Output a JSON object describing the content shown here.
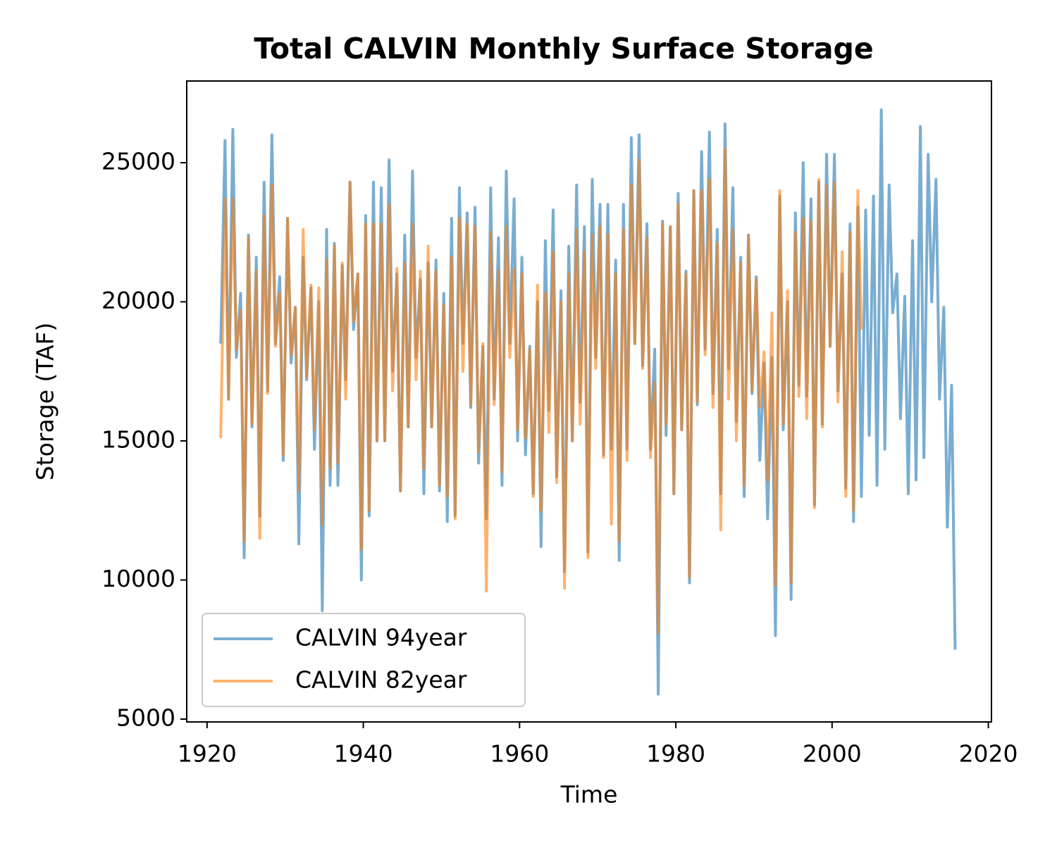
{
  "chart_data": {
    "type": "line",
    "title": "Total CALVIN Monthly Surface Storage",
    "x_label": "Time",
    "y_label": "Storage (TAF)",
    "xlim": [
      1917.4,
      2020.4
    ],
    "ylim": [
      4899,
      27937
    ],
    "xticks": [
      1920,
      1940,
      1960,
      1980,
      2000,
      2020
    ],
    "yticks": [
      5000,
      10000,
      15000,
      20000,
      25000
    ],
    "legend": "lower left",
    "series": [
      {
        "name": "CALVIN 94year",
        "color": "#1f77b4",
        "opacity": 0.6,
        "x": [
          1921.75,
          1922.3,
          1922.75,
          1923.3,
          1923.75,
          1924.3,
          1924.75,
          1925.3,
          1925.75,
          1926.3,
          1926.75,
          1927.3,
          1927.75,
          1928.3,
          1928.75,
          1929.3,
          1929.75,
          1930.3,
          1930.75,
          1931.3,
          1931.75,
          1932.3,
          1932.75,
          1933.3,
          1933.75,
          1934.3,
          1934.75,
          1935.3,
          1935.75,
          1936.3,
          1936.75,
          1937.3,
          1937.75,
          1938.3,
          1938.75,
          1939.3,
          1939.75,
          1940.3,
          1940.75,
          1941.3,
          1941.75,
          1942.3,
          1942.75,
          1943.3,
          1943.75,
          1944.3,
          1944.75,
          1945.3,
          1945.75,
          1946.3,
          1946.75,
          1947.3,
          1947.75,
          1948.3,
          1948.75,
          1949.3,
          1949.75,
          1950.3,
          1950.75,
          1951.3,
          1951.75,
          1952.3,
          1952.75,
          1953.3,
          1953.75,
          1954.3,
          1954.75,
          1955.3,
          1955.75,
          1956.3,
          1956.75,
          1957.3,
          1957.75,
          1958.3,
          1958.75,
          1959.3,
          1959.75,
          1960.3,
          1960.75,
          1961.3,
          1961.75,
          1962.3,
          1962.75,
          1963.3,
          1963.75,
          1964.3,
          1964.75,
          1965.3,
          1965.75,
          1966.3,
          1966.75,
          1967.3,
          1967.75,
          1968.3,
          1968.75,
          1969.3,
          1969.75,
          1970.3,
          1970.75,
          1971.3,
          1971.75,
          1972.3,
          1972.75,
          1973.3,
          1973.75,
          1974.3,
          1974.75,
          1975.3,
          1975.75,
          1976.3,
          1976.75,
          1977.3,
          1977.75,
          1978.3,
          1978.75,
          1979.3,
          1979.75,
          1980.3,
          1980.75,
          1981.3,
          1981.75,
          1982.3,
          1982.75,
          1983.3,
          1983.75,
          1984.3,
          1984.75,
          1985.3,
          1985.75,
          1986.3,
          1986.75,
          1987.3,
          1987.75,
          1988.3,
          1988.75,
          1989.3,
          1989.75,
          1990.3,
          1990.75,
          1991.3,
          1991.75,
          1992.3,
          1992.75,
          1993.3,
          1993.75,
          1994.3,
          1994.75,
          1995.3,
          1995.75,
          1996.3,
          1996.75,
          1997.3,
          1997.75,
          1998.3,
          1998.75,
          1999.3,
          1999.75,
          2000.3,
          2000.75,
          2001.3,
          2001.75,
          2002.3,
          2002.75,
          2003.3,
          2003.75,
          2004.3,
          2004.75,
          2005.3,
          2005.75,
          2006.3,
          2006.75,
          2007.3,
          2007.75,
          2008.3,
          2008.75,
          2009.3,
          2009.75,
          2010.3,
          2010.75,
          2011.3,
          2011.75,
          2012.3,
          2012.75,
          2013.3,
          2013.75,
          2014.3,
          2014.75,
          2015.3,
          2015.75
        ],
        "values": [
          18500,
          25800,
          16500,
          26200,
          18000,
          20300,
          10800,
          22400,
          15500,
          21600,
          12300,
          24300,
          16800,
          26000,
          18500,
          20900,
          14300,
          23000,
          17800,
          19800,
          11300,
          21600,
          17200,
          20500,
          14700,
          20000,
          8900,
          22600,
          13400,
          22100,
          13400,
          21300,
          17200,
          24300,
          19000,
          21000,
          10000,
          23100,
          12300,
          24300,
          15000,
          24100,
          15000,
          25100,
          17500,
          21000,
          13200,
          22400,
          15500,
          24700,
          18000,
          20800,
          13100,
          21400,
          15500,
          21500,
          13200,
          20300,
          12100,
          23000,
          12300,
          24100,
          18500,
          23200,
          16200,
          23400,
          14200,
          18400,
          12200,
          24100,
          16500,
          22300,
          13400,
          24700,
          18500,
          23700,
          15000,
          21600,
          14500,
          18400,
          13100,
          20000,
          11200,
          22200,
          16100,
          23300,
          13700,
          20400,
          10300,
          22000,
          15000,
          24200,
          16400,
          22700,
          11000,
          24400,
          18000,
          23500,
          14500,
          23500,
          14700,
          21500,
          10700,
          23500,
          14700,
          25900,
          18500,
          26000,
          17700,
          22800,
          14700,
          18300,
          5900,
          22900,
          15200,
          22700,
          13100,
          23900,
          15400,
          21100,
          9900,
          24000,
          16300,
          25400,
          18300,
          26100,
          16700,
          22600,
          13100,
          26400,
          17600,
          24100,
          15700,
          21600,
          13000,
          22400,
          16700,
          20900,
          14300,
          17800,
          12200,
          18000,
          8000,
          23800,
          15400,
          20000,
          9300,
          23200,
          17000,
          25000,
          16600,
          23700,
          12700,
          24300,
          15600,
          25300,
          18400,
          25300,
          16800,
          21000,
          13300,
          22800,
          12100,
          23400,
          13000,
          23300,
          15200,
          23800,
          13400,
          26900,
          14700,
          24200,
          19600,
          21000,
          15800,
          20200,
          13100,
          22200,
          13600,
          26300,
          14400,
          25300,
          20000,
          24400,
          16500,
          19800,
          11900,
          17000,
          7500
        ]
      },
      {
        "name": "CALVIN 82year",
        "color": "#ff7f0e",
        "opacity": 0.6,
        "x": [
          1921.75,
          1922.3,
          1922.75,
          1923.3,
          1923.75,
          1924.3,
          1924.75,
          1925.3,
          1925.75,
          1926.3,
          1926.75,
          1927.3,
          1927.75,
          1928.3,
          1928.75,
          1929.3,
          1929.75,
          1930.3,
          1930.75,
          1931.3,
          1931.75,
          1932.3,
          1932.75,
          1933.3,
          1933.75,
          1934.3,
          1934.75,
          1935.3,
          1935.75,
          1936.3,
          1936.75,
          1937.3,
          1937.75,
          1938.3,
          1938.75,
          1939.3,
          1939.75,
          1940.3,
          1940.75,
          1941.3,
          1941.75,
          1942.3,
          1942.75,
          1943.3,
          1943.75,
          1944.3,
          1944.75,
          1945.3,
          1945.75,
          1946.3,
          1946.75,
          1947.3,
          1947.75,
          1948.3,
          1948.75,
          1949.3,
          1949.75,
          1950.3,
          1950.75,
          1951.3,
          1951.75,
          1952.3,
          1952.75,
          1953.3,
          1953.75,
          1954.3,
          1954.75,
          1955.3,
          1955.75,
          1956.3,
          1956.75,
          1957.3,
          1957.75,
          1958.3,
          1958.75,
          1959.3,
          1959.75,
          1960.3,
          1960.75,
          1961.3,
          1961.75,
          1962.3,
          1962.75,
          1963.3,
          1963.75,
          1964.3,
          1964.75,
          1965.3,
          1965.75,
          1966.3,
          1966.75,
          1967.3,
          1967.75,
          1968.3,
          1968.75,
          1969.3,
          1969.75,
          1970.3,
          1970.75,
          1971.3,
          1971.75,
          1972.3,
          1972.75,
          1973.3,
          1973.75,
          1974.3,
          1974.75,
          1975.3,
          1975.75,
          1976.3,
          1976.75,
          1977.3,
          1977.75,
          1978.3,
          1978.75,
          1979.3,
          1979.75,
          1980.3,
          1980.75,
          1981.3,
          1981.75,
          1982.3,
          1982.75,
          1983.3,
          1983.75,
          1984.3,
          1984.75,
          1985.3,
          1985.75,
          1986.3,
          1986.75,
          1987.3,
          1987.75,
          1988.3,
          1988.75,
          1989.3,
          1989.75,
          1990.3,
          1990.75,
          1991.3,
          1991.75,
          1992.3,
          1992.75,
          1993.3,
          1993.75,
          1994.3,
          1994.75,
          1995.3,
          1995.75,
          1996.3,
          1996.75,
          1997.3,
          1997.75,
          1998.3,
          1998.75,
          1999.3,
          1999.75,
          2000.3,
          2000.75,
          2001.3,
          2001.75,
          2002.3,
          2002.75,
          2003.3,
          2003.75
        ],
        "values": [
          15100,
          23700,
          16500,
          23700,
          18300,
          19700,
          11400,
          22300,
          15600,
          21100,
          11500,
          23100,
          16700,
          24200,
          18400,
          20300,
          14500,
          23000,
          18100,
          19800,
          13200,
          22600,
          17300,
          20600,
          15400,
          20500,
          12000,
          21500,
          14000,
          22000,
          14200,
          21400,
          16500,
          24300,
          19300,
          21000,
          11100,
          22800,
          12500,
          22800,
          15000,
          22800,
          15000,
          23500,
          16800,
          21200,
          13200,
          21400,
          15500,
          22800,
          17200,
          21100,
          14000,
          22000,
          15500,
          21100,
          13400,
          19900,
          13000,
          21600,
          12200,
          23000,
          17500,
          22800,
          16300,
          22700,
          14600,
          18500,
          9600,
          22500,
          16300,
          21100,
          13900,
          22700,
          18000,
          21200,
          15400,
          21000,
          15100,
          18300,
          13000,
          20600,
          12500,
          20300,
          15300,
          21800,
          13500,
          20000,
          9700,
          21000,
          15000,
          22600,
          15600,
          21800,
          10800,
          22400,
          17600,
          22700,
          14400,
          22400,
          12000,
          21000,
          11400,
          22600,
          14300,
          24200,
          18500,
          25100,
          17600,
          22300,
          14400,
          17100,
          8100,
          22800,
          15600,
          22700,
          13100,
          23500,
          15400,
          21000,
          10100,
          24000,
          16400,
          24000,
          18100,
          24400,
          16200,
          22100,
          11800,
          25500,
          16500,
          22600,
          15000,
          21400,
          13400,
          22400,
          16800,
          20800,
          16200,
          18200,
          13600,
          19600,
          9800,
          24000,
          15600,
          20400,
          9900,
          22500,
          16600,
          23000,
          15800,
          22900,
          12600,
          24400,
          15500,
          24200,
          18400,
          24300,
          16400,
          21800,
          13000,
          22500,
          12500,
          24000,
          19000
        ]
      }
    ]
  }
}
